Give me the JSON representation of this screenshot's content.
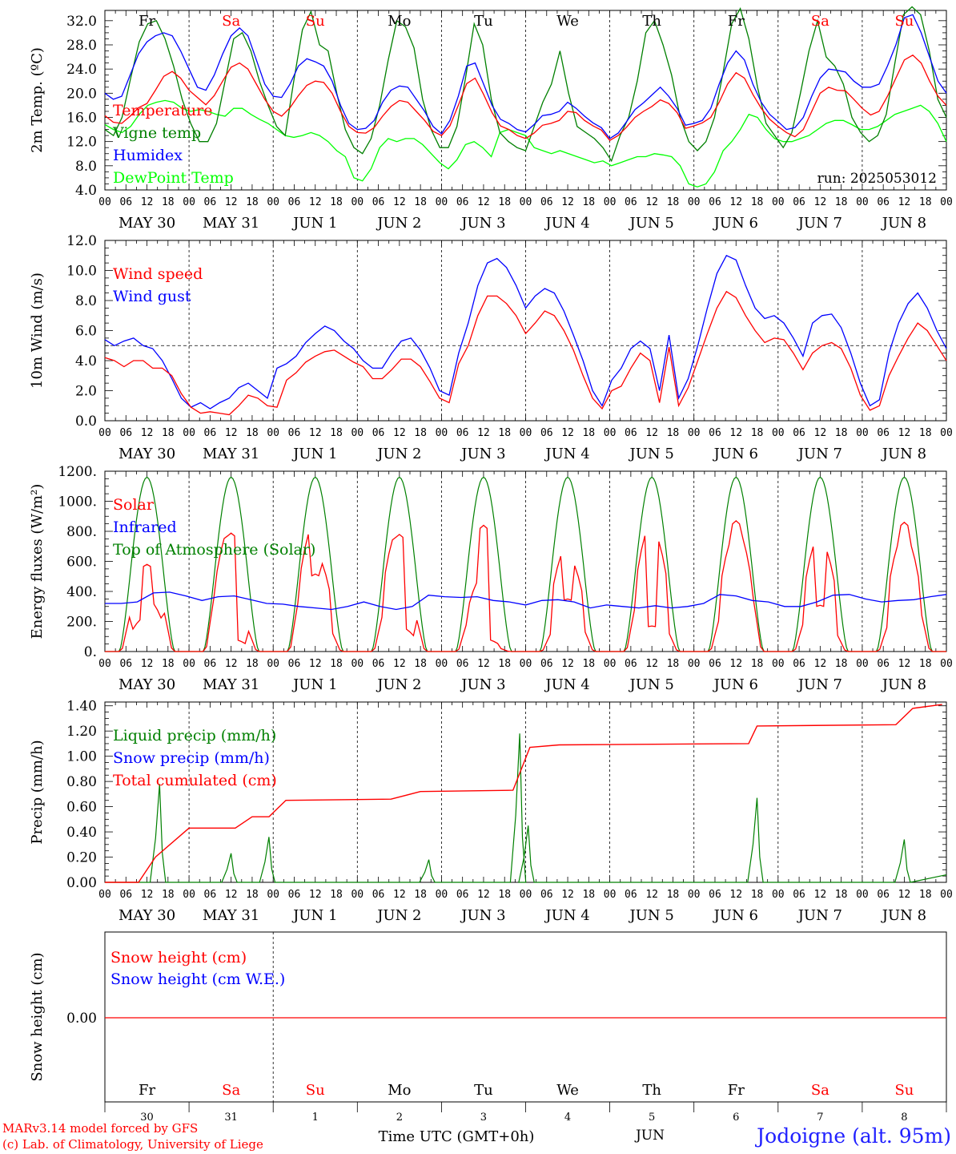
{
  "chart_data": [
    {
      "type": "line",
      "ylabel": "2m Temp. (ºC)",
      "ylim": [
        4.0,
        34.0
      ],
      "yticks": [
        "32.0",
        "28.0",
        "24.0",
        "20.0",
        "16.0",
        "12.0",
        "8.0",
        "4.0"
      ],
      "annotation": "run: 2025053012",
      "series": [
        {
          "name": "Temperature",
          "color": "#ff0000",
          "values": [
            16.3,
            15.2,
            15.0,
            16.2,
            17.6,
            18.3,
            20.5,
            22.8,
            23.6,
            22.5,
            20.5,
            19.3,
            18.1,
            19.6,
            22.0,
            24.3,
            25.0,
            24.0,
            21.5,
            19.0,
            17.0,
            16.2,
            17.6,
            19.6,
            21.3,
            22.0,
            21.8,
            20.0,
            17.0,
            14.5,
            13.5,
            13.4,
            14.3,
            16.2,
            17.8,
            18.8,
            18.5,
            17.0,
            15.5,
            13.7,
            13.0,
            14.6,
            18.0,
            21.6,
            22.5,
            19.8,
            16.8,
            14.6,
            14.0,
            13.0,
            12.5,
            13.4,
            14.7,
            15.0,
            15.5,
            17.0,
            16.8,
            15.5,
            14.6,
            13.9,
            12.2,
            13.0,
            14.4,
            16.0,
            17.0,
            17.8,
            18.9,
            18.3,
            16.8,
            14.2,
            14.6,
            15.1,
            16.0,
            18.5,
            21.5,
            23.4,
            22.5,
            19.8,
            17.5,
            15.7,
            14.5,
            13.5,
            12.8,
            14.0,
            17.0,
            20.0,
            21.0,
            20.5,
            20.4,
            19.0,
            17.5,
            16.4,
            17.0,
            19.5,
            22.5,
            25.5,
            26.3,
            25.0,
            22.0,
            19.5,
            18.0
          ]
        },
        {
          "name": "Vigne temp",
          "color": "#008000",
          "values": [
            14.0,
            13.0,
            16.0,
            22.5,
            28.5,
            31.5,
            32.0,
            29.0,
            24.5,
            19.0,
            15.0,
            12.0,
            12.0,
            15.0,
            22.0,
            29.0,
            30.0,
            27.0,
            22.0,
            18.0,
            14.5,
            13.0,
            22.0,
            30.5,
            33.5,
            28.0,
            27.0,
            20.0,
            14.0,
            11.0,
            10.0,
            12.5,
            18.0,
            25.5,
            32.0,
            31.0,
            27.5,
            19.0,
            14.0,
            11.0,
            11.0,
            14.5,
            22.5,
            31.5,
            28.0,
            19.0,
            13.5,
            12.0,
            11.0,
            10.5,
            14.5,
            18.5,
            21.5,
            27.0,
            20.0,
            14.5,
            13.5,
            12.5,
            11.0,
            8.8,
            13.0,
            16.0,
            22.0,
            30.0,
            32.0,
            28.0,
            23.0,
            16.0,
            12.0,
            10.5,
            12.0,
            16.0,
            23.5,
            31.5,
            34.0,
            29.0,
            21.0,
            15.0,
            13.0,
            11.0,
            13.5,
            20.0,
            27.0,
            32.0,
            26.0,
            24.5,
            21.5,
            16.0,
            13.5,
            12.0,
            13.0,
            16.5,
            25.0,
            33.0,
            35.0,
            33.0,
            27.0,
            19.0,
            16.0
          ]
        },
        {
          "name": "Humidex",
          "color": "#0000ff",
          "values": [
            20.0,
            19.0,
            19.5,
            23.0,
            26.5,
            28.5,
            29.5,
            30.0,
            29.5,
            27.0,
            24.0,
            21.0,
            20.5,
            23.0,
            26.5,
            29.5,
            30.8,
            29.5,
            25.5,
            21.5,
            19.5,
            19.3,
            21.5,
            24.5,
            25.7,
            25.2,
            24.5,
            22.0,
            18.0,
            15.0,
            14.0,
            14.2,
            15.5,
            18.5,
            20.5,
            21.2,
            21.0,
            19.0,
            17.0,
            14.5,
            13.3,
            15.5,
            19.5,
            24.5,
            25.0,
            21.5,
            18.0,
            15.7,
            15.0,
            14.0,
            13.6,
            14.8,
            16.3,
            16.5,
            17.0,
            18.5,
            17.5,
            16.2,
            15.1,
            14.3,
            12.5,
            13.4,
            15.3,
            17.3,
            18.4,
            19.7,
            21.0,
            19.5,
            17.5,
            14.7,
            15.0,
            15.5,
            17.5,
            21.5,
            25.0,
            27.0,
            25.5,
            21.5,
            18.5,
            16.5,
            15.3,
            14.0,
            14.3,
            16.0,
            19.5,
            22.5,
            24.0,
            23.8,
            23.5,
            22.0,
            21.0,
            21.0,
            21.5,
            24.5,
            28.0,
            32.5,
            33.0,
            30.0,
            26.0,
            22.0,
            20.0
          ]
        },
        {
          "name": "DewPoint Temp",
          "color": "#00ff00",
          "values": [
            14.8,
            14.0,
            13.5,
            14.5,
            16.5,
            18.0,
            18.5,
            18.8,
            18.5,
            17.5,
            17.0,
            17.3,
            17.0,
            16.5,
            16.2,
            17.5,
            17.5,
            16.5,
            15.7,
            15.0,
            14.0,
            13.0,
            12.7,
            13.0,
            13.5,
            13.0,
            12.0,
            10.5,
            9.5,
            6.0,
            5.5,
            7.5,
            11.0,
            12.5,
            12.0,
            12.5,
            12.5,
            11.5,
            10.0,
            8.5,
            7.5,
            9.0,
            11.5,
            12.0,
            11.0,
            9.5,
            13.5,
            14.0,
            13.5,
            13.0,
            11.0,
            10.5,
            10.0,
            10.5,
            10.0,
            9.5,
            9.0,
            8.5,
            8.8,
            8.0,
            8.5,
            9.0,
            9.5,
            9.5,
            10.0,
            9.8,
            9.5,
            8.0,
            5.0,
            4.5,
            5.0,
            7.0,
            10.5,
            12.0,
            14.0,
            16.5,
            16.0,
            14.0,
            12.5,
            12.0,
            12.0,
            12.5,
            13.0,
            14.0,
            15.0,
            15.5,
            15.5,
            14.8,
            14.0,
            14.0,
            14.5,
            15.5,
            16.5,
            17.0,
            17.5,
            18.0,
            17.0,
            15.0,
            12.0
          ]
        }
      ]
    },
    {
      "type": "line",
      "ylabel": "10m Wind (m/s)",
      "ylim": [
        0.0,
        12.0
      ],
      "yticks": [
        "12.0",
        "10.0",
        "8.0",
        "6.0",
        "4.0",
        "2.0",
        "0.0"
      ],
      "reference_line": 5.0,
      "series": [
        {
          "name": "Wind speed",
          "color": "#ff0000",
          "values": [
            4.2,
            4.0,
            3.6,
            4.0,
            4.0,
            3.5,
            3.5,
            3.0,
            1.8,
            0.9,
            0.5,
            0.6,
            0.5,
            0.4,
            1.0,
            1.7,
            1.5,
            1.0,
            0.9,
            2.7,
            3.2,
            3.9,
            4.3,
            4.6,
            4.7,
            4.3,
            3.9,
            3.6,
            2.8,
            2.8,
            3.4,
            4.1,
            4.1,
            3.6,
            2.6,
            1.5,
            1.2,
            3.8,
            5.0,
            7.0,
            8.3,
            8.3,
            7.8,
            7.0,
            5.8,
            6.5,
            7.3,
            7.0,
            6.0,
            4.7,
            3.0,
            1.5,
            0.8,
            2.0,
            2.3,
            3.5,
            4.5,
            4.0,
            1.2,
            4.9,
            1.0,
            2.2,
            4.0,
            5.8,
            7.5,
            8.6,
            8.2,
            7.0,
            6.0,
            5.2,
            5.5,
            5.4,
            4.5,
            3.4,
            4.5,
            5.0,
            5.2,
            4.8,
            3.5,
            1.7,
            0.7,
            1.0,
            3.0,
            4.3,
            5.5,
            6.5,
            6.0,
            5.0,
            4.0
          ]
        },
        {
          "name": "Wind gust",
          "color": "#0000ff",
          "values": [
            5.4,
            5.0,
            5.3,
            5.5,
            5.0,
            4.8,
            4.0,
            2.8,
            1.5,
            0.9,
            1.2,
            0.8,
            1.2,
            1.5,
            2.2,
            2.5,
            2.0,
            1.5,
            3.5,
            3.8,
            4.3,
            5.2,
            5.8,
            6.3,
            6.0,
            5.3,
            4.8,
            4.0,
            3.5,
            3.5,
            4.5,
            5.3,
            5.5,
            4.7,
            3.5,
            2.0,
            1.7,
            4.5,
            6.5,
            9.0,
            10.5,
            10.8,
            10.2,
            9.0,
            7.5,
            8.3,
            8.8,
            8.5,
            7.3,
            5.7,
            4.0,
            2.0,
            1.0,
            2.7,
            3.5,
            4.8,
            5.3,
            4.8,
            2.0,
            5.7,
            1.5,
            2.8,
            5.0,
            7.5,
            9.8,
            11.0,
            10.7,
            9.0,
            7.5,
            6.8,
            7.0,
            6.5,
            5.5,
            4.3,
            6.5,
            7.0,
            7.1,
            6.2,
            4.5,
            2.5,
            1.0,
            1.4,
            4.5,
            6.5,
            7.8,
            8.5,
            7.5,
            6.0,
            4.8
          ]
        }
      ]
    },
    {
      "type": "line",
      "ylabel": "Energy fluxes (W/m²)",
      "ylim": [
        0,
        1200
      ],
      "yticks": [
        "1200.",
        "1000.",
        "800.",
        "600.",
        "400.",
        "200.",
        "0."
      ],
      "series": [
        {
          "name": "Solar",
          "color": "#ff0000",
          "note": "daily cycle peaks per day",
          "values": [
            580,
            830,
            860,
            820,
            840,
            700,
            850,
            870,
            770,
            860
          ]
        },
        {
          "name": "Infrared",
          "color": "#0000ff",
          "values": [
            320,
            320,
            330,
            390,
            395,
            370,
            340,
            365,
            370,
            345,
            320,
            315,
            300,
            290,
            280,
            300,
            330,
            300,
            280,
            300,
            375,
            365,
            360,
            365,
            340,
            330,
            310,
            340,
            345,
            330,
            290,
            310,
            300,
            290,
            305,
            290,
            300,
            320,
            380,
            370,
            340,
            330,
            300,
            300,
            330,
            375,
            380,
            350,
            330,
            340,
            345,
            365,
            380
          ]
        },
        {
          "name": "Top of Atmosphere (Solar)",
          "color": "#008000",
          "note": "peaks about 1160 W/m2 each day, zero at night"
        }
      ]
    },
    {
      "type": "line",
      "ylabel": "Precip (mm/h)",
      "ylim": [
        0.0,
        1.5
      ],
      "yticks": [
        "1.40",
        "1.20",
        "1.00",
        "0.80",
        "0.60",
        "0.40",
        "0.20",
        "0.00"
      ],
      "series": [
        {
          "name": "Liquid precip (mm/h)",
          "color": "#008000",
          "events": [
            {
              "day": 0.65,
              "peak": 0.78
            },
            {
              "day": 1.5,
              "peak": 0.23
            },
            {
              "day": 1.95,
              "peak": 0.36
            },
            {
              "day": 3.85,
              "peak": 0.18
            },
            {
              "day": 4.93,
              "peak": 1.18
            },
            {
              "day": 5.03,
              "peak": 0.45
            },
            {
              "day": 7.75,
              "peak": 0.67
            },
            {
              "day": 9.5,
              "peak": 0.34
            }
          ]
        },
        {
          "name": "Snow precip (mm/h)",
          "color": "#0000ff",
          "values": [
            0
          ]
        },
        {
          "name": "Total cumulated (cm)",
          "color": "#ff0000",
          "steps": [
            [
              0,
              0.0
            ],
            [
              0.4,
              0.0
            ],
            [
              0.6,
              0.2
            ],
            [
              1.0,
              0.43
            ],
            [
              1.55,
              0.43
            ],
            [
              1.75,
              0.52
            ],
            [
              1.95,
              0.52
            ],
            [
              2.15,
              0.65
            ],
            [
              3.4,
              0.66
            ],
            [
              3.75,
              0.72
            ],
            [
              4.85,
              0.73
            ],
            [
              5.05,
              1.07
            ],
            [
              5.4,
              1.09
            ],
            [
              7.65,
              1.1
            ],
            [
              7.75,
              1.24
            ],
            [
              9.4,
              1.25
            ],
            [
              9.6,
              1.38
            ],
            [
              9.95,
              1.41
            ]
          ]
        }
      ]
    },
    {
      "type": "line",
      "ylabel": "Snow height (cm)",
      "yticks": [
        "0.00"
      ],
      "series": [
        {
          "name": "Snow height (cm)",
          "color": "#ff0000",
          "values": [
            0.0
          ]
        },
        {
          "name": "Snow height (cm W.E.)",
          "color": "#0000ff",
          "values": [
            0.0
          ]
        }
      ]
    }
  ],
  "axes": {
    "hour_ticks": [
      "00",
      "06",
      "12",
      "18"
    ],
    "last_hour_tick": "00",
    "date_labels": [
      "MAY 30",
      "MAY 31",
      "JUN  1",
      "JUN  2",
      "JUN  3",
      "JUN  4",
      "JUN  5",
      "JUN  6",
      "JUN  7",
      "JUN  8"
    ],
    "weekdays": [
      "Fr",
      "Sa",
      "Su",
      "Mo",
      "Tu",
      "We",
      "Th",
      "Fr",
      "Sa",
      "Su"
    ],
    "weekday_colors": [
      "#000000",
      "#ff0000",
      "#ff0000",
      "#000000",
      "#000000",
      "#000000",
      "#000000",
      "#000000",
      "#ff0000",
      "#ff0000"
    ],
    "bottom_day_numbers": [
      "30",
      "31",
      "1",
      "2",
      "3",
      "4",
      "5",
      "6",
      "7",
      "8"
    ],
    "bottom_month": "JUN",
    "xlabel": "Time UTC (GMT+0h)"
  },
  "footer": {
    "credit_line1": "MARv3.14 model forced by GFS",
    "credit_line2": "(c) Lab. of Climatology, University of Liege",
    "station": "Jodoigne (alt. 95m)"
  }
}
